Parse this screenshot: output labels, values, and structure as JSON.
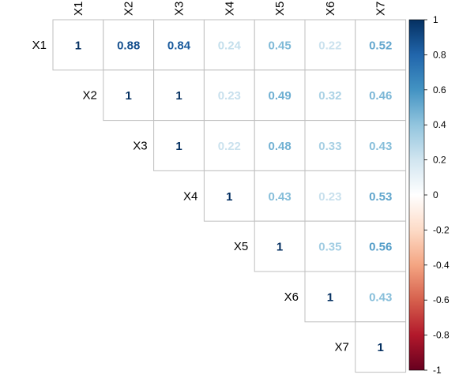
{
  "chart_data": {
    "type": "heatmap",
    "title": "",
    "variables": [
      "X1",
      "X2",
      "X3",
      "X4",
      "X5",
      "X6",
      "X7"
    ],
    "layout": "upper-triangle",
    "matrix": [
      [
        1,
        0.88,
        0.84,
        0.24,
        0.45,
        0.22,
        0.52
      ],
      [
        null,
        1,
        1,
        0.23,
        0.49,
        0.32,
        0.46
      ],
      [
        null,
        null,
        1,
        0.22,
        0.48,
        0.33,
        0.43
      ],
      [
        null,
        null,
        null,
        1,
        0.43,
        0.23,
        0.53
      ],
      [
        null,
        null,
        null,
        null,
        1,
        0.35,
        0.56
      ],
      [
        null,
        null,
        null,
        null,
        null,
        1,
        0.43
      ],
      [
        null,
        null,
        null,
        null,
        null,
        null,
        1
      ]
    ],
    "color_scale": {
      "min": -1,
      "max": 1,
      "ticks": [
        "1",
        "0.8",
        "0.6",
        "0.4",
        "0.2",
        "0",
        "-0.2",
        "-0.4",
        "-0.6",
        "-0.8",
        "-1"
      ],
      "colors": [
        "#67001f",
        "#b2182b",
        "#d6604d",
        "#f4a582",
        "#fddbc7",
        "#ffffff",
        "#d1e5f0",
        "#92c5de",
        "#4393c3",
        "#2166ac",
        "#053061"
      ]
    },
    "legend_position": "right"
  }
}
